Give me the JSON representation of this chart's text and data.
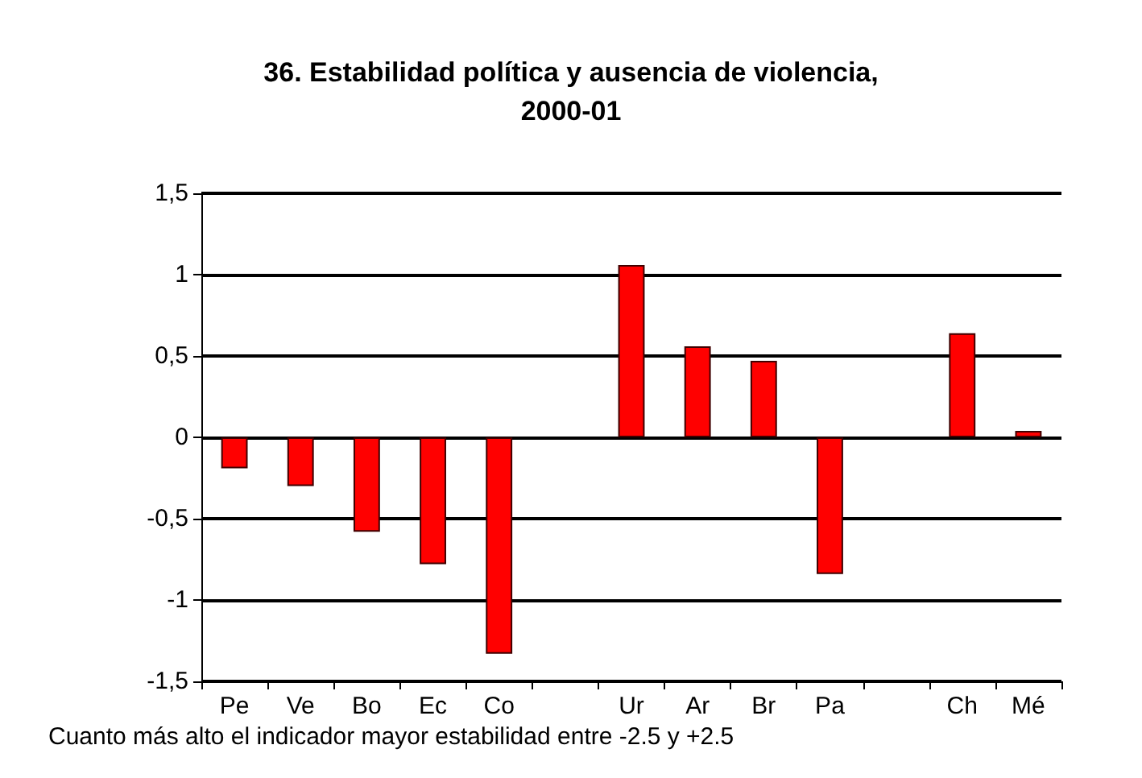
{
  "chart_data": {
    "type": "bar",
    "title": "36. Estabilidad política y ausencia de violencia,\n2000-01",
    "categories": [
      "Pe",
      "Ve",
      "Bo",
      "Ec",
      "Co",
      null,
      "Ur",
      "Ar",
      "Br",
      "Pa",
      null,
      "Ch",
      "Mé"
    ],
    "values": [
      -0.19,
      -0.3,
      -0.58,
      -0.78,
      -1.33,
      null,
      1.06,
      0.56,
      0.47,
      -0.84,
      null,
      0.64,
      0.04
    ],
    "color": "#ff0000",
    "ylim": [
      -1.5,
      1.5
    ],
    "yticks": [
      {
        "value": -1.5,
        "label": "-1,5"
      },
      {
        "value": -1,
        "label": "-1"
      },
      {
        "value": -0.5,
        "label": "-0,5"
      },
      {
        "value": 0,
        "label": "0"
      },
      {
        "value": 0.5,
        "label": "0,5"
      },
      {
        "value": 1,
        "label": "1"
      },
      {
        "value": 1.5,
        "label": "1,5"
      }
    ],
    "grid": "y",
    "annotations": [
      "Cuanto más alto el indicador mayor estabilidad entre -2.5 y +2.5"
    ]
  }
}
